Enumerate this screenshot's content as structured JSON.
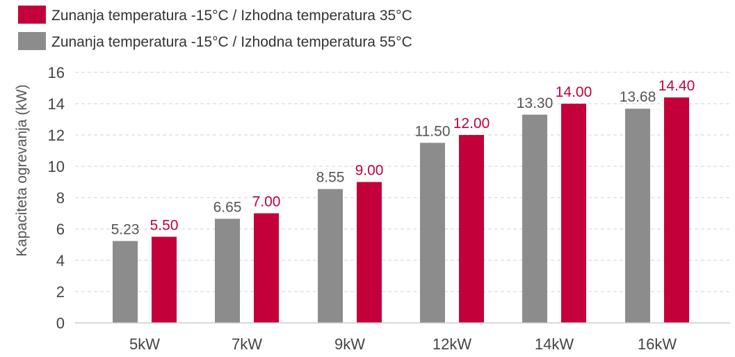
{
  "chart_data": {
    "type": "bar",
    "categories": [
      "5kW",
      "7kW",
      "9kW",
      "12kW",
      "14kW",
      "16kW"
    ],
    "series": [
      {
        "name": "Zunanja temperatura -15°C / Izhodna temperatura 55°C",
        "color": "#8c8c8c",
        "label_color": "#555555",
        "values": [
          5.23,
          6.65,
          8.55,
          11.5,
          13.3,
          13.68
        ],
        "labels": [
          "5.23",
          "6.65",
          "8.55",
          "11.50",
          "13.30",
          "13.68"
        ]
      },
      {
        "name": "Zunanja temperatura -15°C / Izhodna temperatura 35°C",
        "color": "#c4003a",
        "label_color": "#c4003a",
        "values": [
          5.5,
          7.0,
          9.0,
          12.0,
          14.0,
          14.4
        ],
        "labels": [
          "5.50",
          "7.00",
          "9.00",
          "12.00",
          "14.00",
          "14.40"
        ]
      }
    ],
    "legend_order": [
      1,
      0
    ],
    "legend_position": "top-left",
    "title": "",
    "xlabel": "",
    "ylabel": "Kapaciteta ogrevanja (kW)",
    "ylim": [
      0,
      16
    ],
    "yticks": [
      "0",
      "2",
      "4",
      "6",
      "8",
      "10",
      "12",
      "14",
      "16"
    ],
    "grid": "horizontal-dashed"
  }
}
